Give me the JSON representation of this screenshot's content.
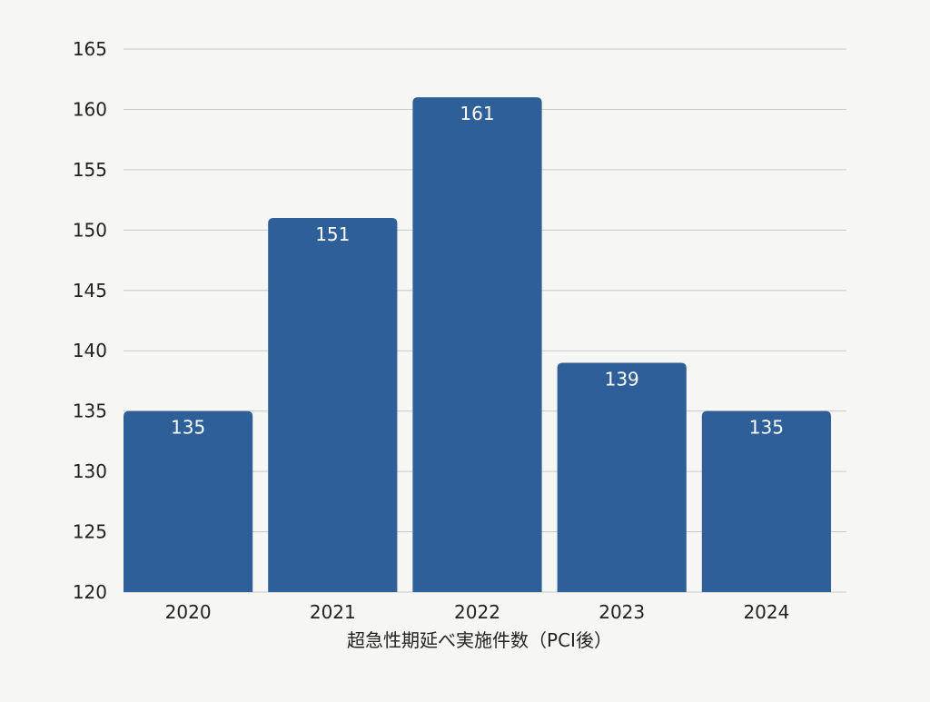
{
  "chart_data": {
    "type": "bar",
    "title": "",
    "xlabel": "超急性期延べ実施件数（PCI後）",
    "ylabel": "",
    "categories": [
      "2020",
      "2021",
      "2022",
      "2023",
      "2024"
    ],
    "values": [
      135,
      151,
      161,
      139,
      135
    ],
    "data_labels": [
      "135",
      "151",
      "161",
      "139",
      "135"
    ],
    "ylim": [
      120,
      165
    ],
    "yticks": [
      "120",
      "125",
      "130",
      "135",
      "140",
      "145",
      "150",
      "155",
      "160",
      "165"
    ],
    "grid": true,
    "legend": "none",
    "bar_color": "#2e5f98",
    "background": "#f6f6f4"
  }
}
